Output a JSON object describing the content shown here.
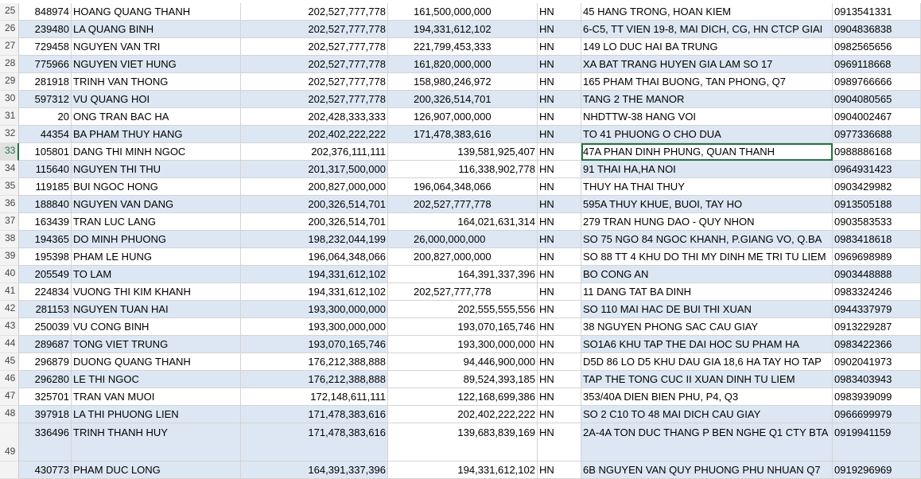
{
  "sheet": {
    "rows": [
      {
        "num": "25",
        "id": "848974",
        "name": "HOANG QUANG THANH",
        "v1": "202,527,777,778",
        "v2": "161,500,000,000",
        "v2align": "left",
        "city": "HN",
        "addr": "45 HANG TRONG, HOAN KIEM",
        "phone": "0913541331"
      },
      {
        "num": "26",
        "id": "239480",
        "name": "LA QUANG BINH",
        "v1": "202,527,777,778",
        "v2": "194,331,612,102",
        "v2align": "left",
        "city": "HN",
        "addr": "6-C5, TT VIEN 19-8, MAI DICH, CG, HN    CTCP GIAI",
        "phone": "0904836838"
      },
      {
        "num": "27",
        "id": "729458",
        "name": "NGUYEN VAN TRI",
        "v1": "202,527,777,778",
        "v2": "221,799,453,333",
        "v2align": "left",
        "city": "HN",
        "addr": "149 LO DUC HAI BA TRUNG",
        "phone": "0982565656"
      },
      {
        "num": "28",
        "id": "775966",
        "name": "NGUYEN VIET HUNG",
        "v1": "202,527,777,778",
        "v2": "161,820,000,000",
        "v2align": "left",
        "city": "HN",
        "addr": "XA BAT TRANG HUYEN GIA LAM          SO 17",
        "phone": "0969118668"
      },
      {
        "num": "29",
        "id": "281918",
        "name": "TRINH VAN THONG",
        "v1": "202,527,777,778",
        "v2": "158,980,246,972",
        "v2align": "left",
        "city": "HN",
        "addr": "165 PHAM THAI BUONG, TAN PHONG, Q7",
        "phone": "0989766666"
      },
      {
        "num": "30",
        "id": "597312",
        "name": "VU QUANG HOI",
        "v1": "202,527,777,778",
        "v2": "200,326,514,701",
        "v2align": "left",
        "city": "HN",
        "addr": "TANG 2 THE MANOR",
        "phone": "0904080565"
      },
      {
        "num": "31",
        "id": "20",
        "name": "ONG TRAN BAC HA",
        "v1": "202,428,333,333",
        "v2": "126,907,000,000",
        "v2align": "left",
        "city": "HN",
        "addr": "NHDTTW-38 HANG VOI",
        "phone": "0904002467"
      },
      {
        "num": "32",
        "id": "44354",
        "name": "BA PHAM THUY HANG",
        "v1": "202,402,222,222",
        "v2": "171,478,383,616",
        "v2align": "left",
        "city": "HN",
        "addr": "TO 41 PHUONG O CHO DUA",
        "phone": "0977336688"
      },
      {
        "num": "33",
        "id": "105801",
        "name": "DANG THI MINH NGOC",
        "v1": "202,376,111,111",
        "v2": "139,581,925,407",
        "v2align": "right",
        "city": "HN",
        "addr": "47A PHAN DINH PHUNG, QUAN THANH",
        "phone": "0988886168"
      },
      {
        "num": "34",
        "id": "115640",
        "name": "NGUYEN THI THU",
        "v1": "201,317,500,000",
        "v2": "116,338,902,778",
        "v2align": "right",
        "city": "HN",
        "addr": "91 THAI HA,HA NOI",
        "phone": "0964931423"
      },
      {
        "num": "35",
        "id": "119185",
        "name": "BUI NGOC HONG",
        "v1": "200,827,000,000",
        "v2": "196,064,348,066",
        "v2align": "left",
        "city": "HN",
        "addr": "THUY HA THAI THUY",
        "phone": "0903429982"
      },
      {
        "num": "36",
        "id": "188840",
        "name": "NGUYEN VAN DANG",
        "v1": "200,326,514,701",
        "v2": "202,527,777,778",
        "v2align": "left",
        "city": "HN",
        "addr": "595A THUY KHUE, BUOI, TAY HO",
        "phone": "0913505188"
      },
      {
        "num": "37",
        "id": "163439",
        "name": "TRAN LUC LANG",
        "v1": "200,326,514,701",
        "v2": "164,021,631,314",
        "v2align": "right",
        "city": "HN",
        "addr": "279 TRAN HUNG DAO - QUY NHON",
        "phone": "0903583533"
      },
      {
        "num": "38",
        "id": "194365",
        "name": "DO MINH PHUONG",
        "v1": "198,232,044,199",
        "v2": "26,000,000,000",
        "v2align": "left",
        "city": "HN",
        "addr": "SO 75 NGO 84 NGOC KHANH, P.GIANG VO,    Q.BA",
        "phone": "0983418618"
      },
      {
        "num": "39",
        "id": "195398",
        "name": "PHAM LE HUNG",
        "v1": "196,064,348,066",
        "v2": "200,827,000,000",
        "v2align": "left",
        "city": "HN",
        "addr": "SO 88 TT 4 KHU DO THI MY DINH ME TRI    TU LIEM",
        "phone": "0969698989"
      },
      {
        "num": "40",
        "id": "205549",
        "name": "TO LAM",
        "v1": "194,331,612,102",
        "v2": "164,391,337,396",
        "v2align": "right",
        "city": "HN",
        "addr": "BO CONG AN",
        "phone": "0903448888"
      },
      {
        "num": "41",
        "id": "224834",
        "name": "VUONG THI KIM KHANH",
        "v1": "194,331,612,102",
        "v2": "202,527,777,778",
        "v2align": "left",
        "city": "HN",
        "addr": "11 DANG TAT                          BA DINH",
        "phone": "0983324246"
      },
      {
        "num": "42",
        "id": "281153",
        "name": "NGUYEN TUAN HAI",
        "v1": "193,300,000,000",
        "v2": "202,555,555,556",
        "v2align": "right",
        "city": "HN",
        "addr": "SO 110 MAI HAC DE BUI THI XUAN",
        "phone": "0944337979"
      },
      {
        "num": "43",
        "id": "250039",
        "name": "VU CONG BINH",
        "v1": "193,300,000,000",
        "v2": "193,070,165,746",
        "v2align": "right",
        "city": "HN",
        "addr": "38 NGUYEN PHONG SAC CAU GIAY",
        "phone": "0913229287"
      },
      {
        "num": "44",
        "id": "289687",
        "name": "TONG VIET TRUNG",
        "v1": "193,070,165,746",
        "v2": "193,300,000,000",
        "v2align": "right",
        "city": "HN",
        "addr": " SO1A6 KHU TAP THE DAI HOC SU PHAM HA",
        "phone": "0983422366"
      },
      {
        "num": "45",
        "id": "296879",
        "name": "DUONG QUANG THANH",
        "v1": "176,212,388,888",
        "v2": "94,446,900,000",
        "v2align": "right",
        "city": "HN",
        "addr": "D5D 86 LO D5 KHU DAU GIA 18,6 HA TAY HO TAP",
        "phone": "0902041973"
      },
      {
        "num": "46",
        "id": "296280",
        "name": "LE THI NGOC",
        "v1": "176,212,388,888",
        "v2": "89,524,393,185",
        "v2align": "right",
        "city": "HN",
        "addr": "TAP THE TONG CUC II XUAN DINH TU LIEM",
        "phone": "0983403943"
      },
      {
        "num": "47",
        "id": "325701",
        "name": "TRAN VAN MUOI",
        "v1": "172,148,611,111",
        "v2": "122,168,699,386",
        "v2align": "right",
        "city": "HN",
        "addr": "353/40A DIEN BIEN PHU, P4, Q3",
        "phone": "0983939099"
      },
      {
        "num": "48",
        "id": "397918",
        "name": "LA THI PHUONG LIEN",
        "v1": "171,478,383,616",
        "v2": "202,402,222,222",
        "v2align": "right",
        "city": "HN",
        "addr": "SO 2 C10 TO 48 MAI DICH CAU GIAY",
        "phone": "0966699979"
      },
      {
        "num": "49",
        "id": "336496",
        "name": "TRINH THANH HUY",
        "v1": "171,478,383,616",
        "v2": "139,683,839,169",
        "v2align": "right",
        "city": "HN",
        "addr": "2A-4A TON DUC THANG P BEN NGHE Q1      CTY BTA",
        "phone": "0919941159"
      },
      {
        "num": "",
        "id": "430773",
        "name": "PHAM DUC LONG",
        "v1": "164,391,337,396",
        "v2": "194,331,612,102",
        "v2align": "right",
        "city": "HN",
        "addr": "6B NGUYEN VAN QUY PHUONG PHU NHUAN Q7",
        "phone": "0919296969"
      }
    ],
    "active_row": "33",
    "colors": {
      "band": "#dde7f3",
      "grid": "#d4d4d4",
      "select": "#217346"
    }
  }
}
